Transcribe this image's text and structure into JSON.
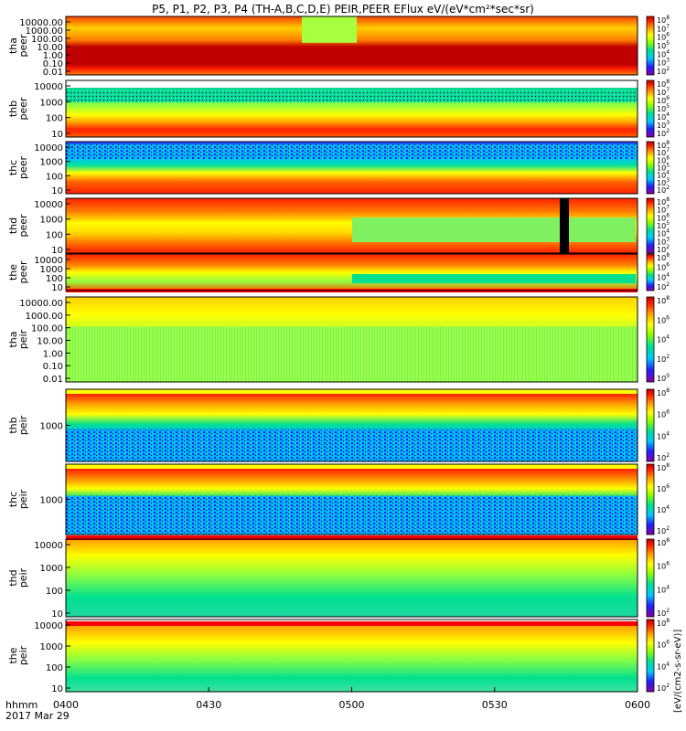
{
  "chart_data": {
    "type": "heatmap",
    "title": "P5, P1, P2, P3, P4 (TH-A,B,C,D,E) PEIR,PEER EFlux eV/(eV*cm²*sec*sr)",
    "time_label": "hhmm",
    "date_label": "2017 Mar 29",
    "x_ticks": [
      "0400",
      "0430",
      "0500",
      "0530",
      "0600"
    ],
    "x_range": [
      "04:00",
      "06:00"
    ],
    "colorbar_label": "[eV/(cm2-s-sr-eV)]",
    "panels": [
      {
        "label": [
          "tha",
          "peer"
        ],
        "y_scale": "log",
        "y_ticks": [
          "10000.00",
          "1000.00",
          "100.00",
          "10.00",
          "1.00",
          "0.10",
          "0.01"
        ],
        "cbar_ticks": [
          "10^8",
          "10^7",
          "10^6",
          "10^5",
          "10^4",
          "10^3",
          "10^2"
        ],
        "style": "tha-peer"
      },
      {
        "label": [
          "thb",
          "peer"
        ],
        "y_scale": "log",
        "y_ticks": [
          "10000",
          "1000",
          "100",
          "10"
        ],
        "cbar_ticks": [
          "10^8",
          "10^7",
          "10^6",
          "10^5",
          "10^4",
          "10^3",
          "10^2"
        ],
        "style": "thb-peer"
      },
      {
        "label": [
          "thc",
          "peer"
        ],
        "y_scale": "log",
        "y_ticks": [
          "10000",
          "1000",
          "100",
          "10"
        ],
        "cbar_ticks": [
          "10^8",
          "10^7",
          "10^6",
          "10^5",
          "10^4",
          "10^3",
          "10^2"
        ],
        "style": "thc-peer"
      },
      {
        "label": [
          "thd",
          "peer"
        ],
        "y_scale": "log",
        "y_ticks": [
          "10000",
          "1000",
          "100",
          "10"
        ],
        "cbar_ticks": [
          "10^8",
          "10^7",
          "10^6",
          "10^5",
          "10^4",
          "10^3",
          "10^2"
        ],
        "style": "thd-peer"
      },
      {
        "label": [
          "the",
          "peer"
        ],
        "y_scale": "log",
        "y_ticks": [
          "10000",
          "1000",
          "100",
          "10"
        ],
        "cbar_ticks": [
          "10^8",
          "10^6",
          "10^4",
          "10^2"
        ],
        "style": "the-peer"
      },
      {
        "label": [
          "tha",
          "peir"
        ],
        "y_scale": "log",
        "y_ticks": [
          "10000.00",
          "1000.00",
          "100.00",
          "10.00",
          "1.00",
          "0.10",
          "0.01"
        ],
        "cbar_ticks": [
          "10^8",
          "10^6",
          "10^4",
          "10^2",
          "10^0"
        ],
        "style": "tha-peir"
      },
      {
        "label": [
          "thb",
          "peir"
        ],
        "y_scale": "log",
        "y_ticks": [
          "1000"
        ],
        "cbar_ticks": [
          "10^8",
          "10^6",
          "10^4",
          "10^2"
        ],
        "style": "thb-peir"
      },
      {
        "label": [
          "thc",
          "peir"
        ],
        "y_scale": "log",
        "y_ticks": [
          "1000"
        ],
        "cbar_ticks": [
          "10^8",
          "10^6",
          "10^4",
          "10^2"
        ],
        "style": "thc-peir"
      },
      {
        "label": [
          "thd",
          "peir"
        ],
        "y_scale": "log",
        "y_ticks": [
          "10000",
          "1000",
          "100",
          "10"
        ],
        "cbar_ticks": [
          "10^8",
          "10^6",
          "10^4",
          "10^2"
        ],
        "style": "thd-peir"
      },
      {
        "label": [
          "the",
          "peir"
        ],
        "y_scale": "log",
        "y_ticks": [
          "10000",
          "1000",
          "100",
          "10"
        ],
        "cbar_ticks": [
          "10^8",
          "10^6",
          "10^4",
          "10^2"
        ],
        "style": "the-peir"
      }
    ],
    "colorscale": [
      "#8a00a0",
      "#2020ff",
      "#00c8ff",
      "#00e090",
      "#90ff00",
      "#ffff00",
      "#ffa000",
      "#ff2000",
      "#c00000"
    ]
  }
}
